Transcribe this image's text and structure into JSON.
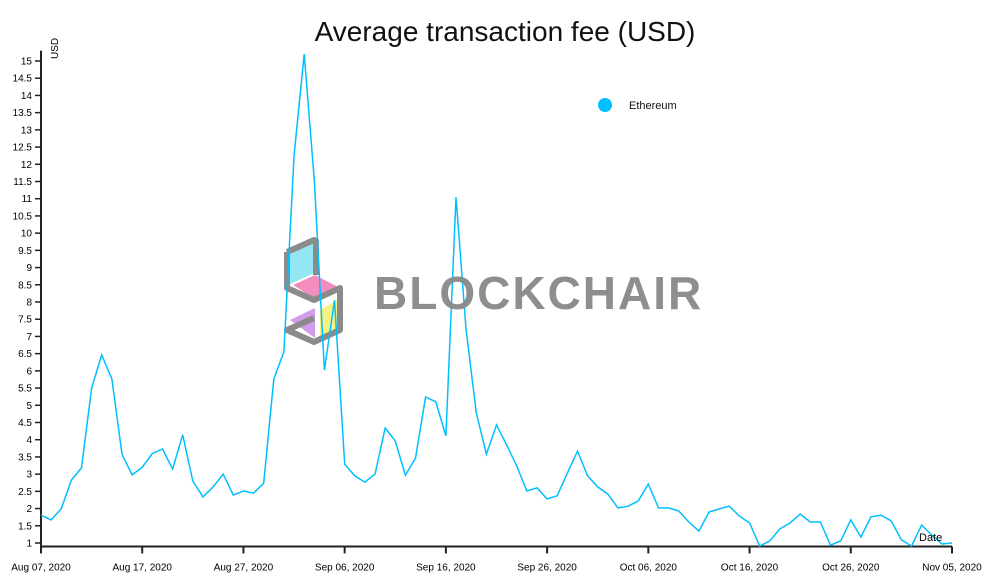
{
  "chart_data": {
    "type": "line",
    "title": "Average transaction fee (USD)",
    "xlabel": "Date",
    "ylabel": "USD",
    "start_date": "2020-08-07",
    "x_step_days": 1,
    "ylim": [
      0.9,
      15.3
    ],
    "y_ticks": [
      1,
      1.5,
      2,
      2.5,
      3,
      3.5,
      4,
      4.5,
      5,
      5.5,
      6,
      6.5,
      7,
      7.5,
      8,
      8.5,
      9,
      9.5,
      10,
      10.5,
      11,
      11.5,
      12,
      12.5,
      13,
      13.5,
      14,
      14.5,
      15
    ],
    "x_tick_labels": [
      "Aug 07, 2020",
      "Aug 17, 2020",
      "Aug 27, 2020",
      "Sep 06, 2020",
      "Sep 16, 2020",
      "Sep 26, 2020",
      "Oct 06, 2020",
      "Oct 16, 2020",
      "Oct 26, 2020",
      "Nov 05, 2020"
    ],
    "x_tick_every_days": 10,
    "grid": false,
    "legend_position": "top-right",
    "series": [
      {
        "name": "Ethereum",
        "color": "#00bfff",
        "values": [
          1.81,
          1.67,
          1.99,
          2.83,
          3.18,
          5.5,
          6.46,
          5.76,
          3.58,
          2.98,
          3.2,
          3.6,
          3.73,
          3.15,
          4.14,
          2.8,
          2.34,
          2.63,
          3.0,
          2.39,
          2.51,
          2.45,
          2.74,
          5.76,
          6.55,
          12.27,
          15.2,
          11.54,
          6.02,
          8.05,
          3.29,
          2.95,
          2.77,
          3.0,
          4.34,
          3.96,
          2.97,
          3.47,
          5.24,
          5.1,
          4.11,
          11.05,
          7.19,
          4.78,
          3.58,
          4.43,
          3.85,
          3.24,
          2.51,
          2.6,
          2.28,
          2.37,
          3.03,
          3.67,
          2.95,
          2.63,
          2.42,
          2.02,
          2.07,
          2.22,
          2.71,
          2.02,
          2.02,
          1.93,
          1.61,
          1.35,
          1.9,
          1.99,
          2.07,
          1.78,
          1.58,
          0.91,
          1.06,
          1.41,
          1.58,
          1.84,
          1.61,
          1.61,
          0.94,
          1.06,
          1.67,
          1.17,
          1.76,
          1.81,
          1.64,
          1.09,
          0.91,
          1.52,
          1.23,
          0.97,
          1.0
        ]
      }
    ]
  },
  "watermark": {
    "text": "BLOCKCHAIR"
  }
}
